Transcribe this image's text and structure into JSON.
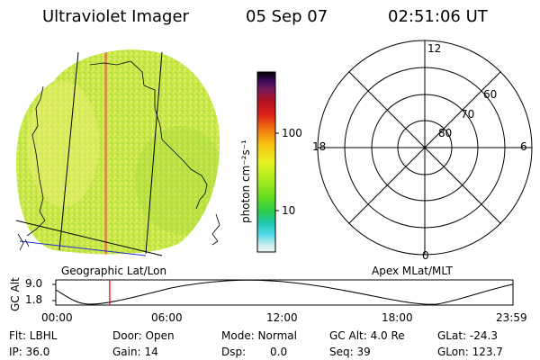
{
  "header": {
    "instrument": "Ultraviolet Imager",
    "date": "05 Sep 07",
    "time": "02:51:06 UT"
  },
  "panels": {
    "left_label": "Geographic Lat/Lon",
    "right_label": "Apex MLat/MLT"
  },
  "colorbar": {
    "unit_label": "photon cm⁻²s⁻¹",
    "ticks": [
      "100",
      "10"
    ],
    "colors": [
      "#000000",
      "#2a0a4a",
      "#5a1a6a",
      "#8a1a4a",
      "#b01020",
      "#d8201a",
      "#ee5a10",
      "#f8a010",
      "#f8d010",
      "#e8f020",
      "#b8f020",
      "#78e020",
      "#30d040",
      "#20c8a0",
      "#40d8e0",
      "#a0e8f0",
      "#e8f4f8"
    ]
  },
  "polar_grid": {
    "mlt_labels": [
      "12",
      "6",
      "0",
      "18"
    ],
    "lat_labels": [
      "60",
      "70",
      "80"
    ]
  },
  "altitude_plot": {
    "ylabel": "GC Alt",
    "yticks": [
      "9.0",
      "1.8"
    ],
    "xticks": [
      "00:00",
      "06:00",
      "12:00",
      "18:00",
      "23:59"
    ],
    "current_time_fraction": 0.118,
    "marker_color": "#dd0000"
  },
  "info": {
    "flt": "Flt: LBHL",
    "door": "Door: Open",
    "mode": "Mode: Normal",
    "gcalt": "GC Alt: 4.0 Re",
    "glat": "GLat: -24.3",
    "ip": "IP: 36.0",
    "gain": "Gain: 14",
    "dsp_label": "Dsp:",
    "dsp_value": "0.0",
    "seq": "Seq: 39",
    "glon": "GLon: 123.7"
  }
}
